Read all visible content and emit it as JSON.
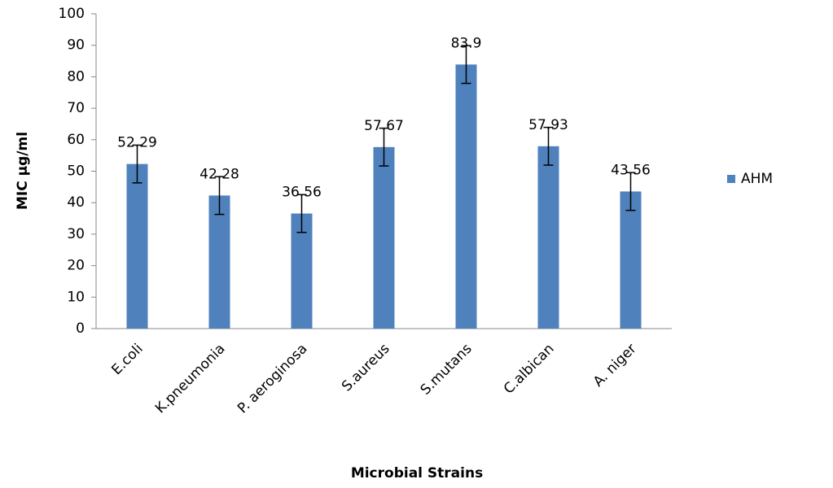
{
  "chart_data": {
    "type": "bar",
    "x_label": "Microbial  Strains",
    "y_label": "MIC µg/ml",
    "categories": [
      "E.coli",
      "K.pneumonia",
      "P.  aeroginosa",
      "S.aureus",
      "S.mutans",
      "C.albican",
      "A. niger"
    ],
    "series": [
      {
        "name": "AHM",
        "color": "#4f81bd",
        "values": [
          52.29,
          42.28,
          36.56,
          57.67,
          83.9,
          57.93,
          43.56
        ],
        "errors": [
          6,
          6,
          6,
          6,
          6,
          6,
          6
        ]
      }
    ],
    "ylim": [
      0,
      100
    ],
    "yticks": [
      0,
      10,
      20,
      30,
      40,
      50,
      60,
      70,
      80,
      90,
      100
    ],
    "grid": false,
    "legend": "right"
  }
}
